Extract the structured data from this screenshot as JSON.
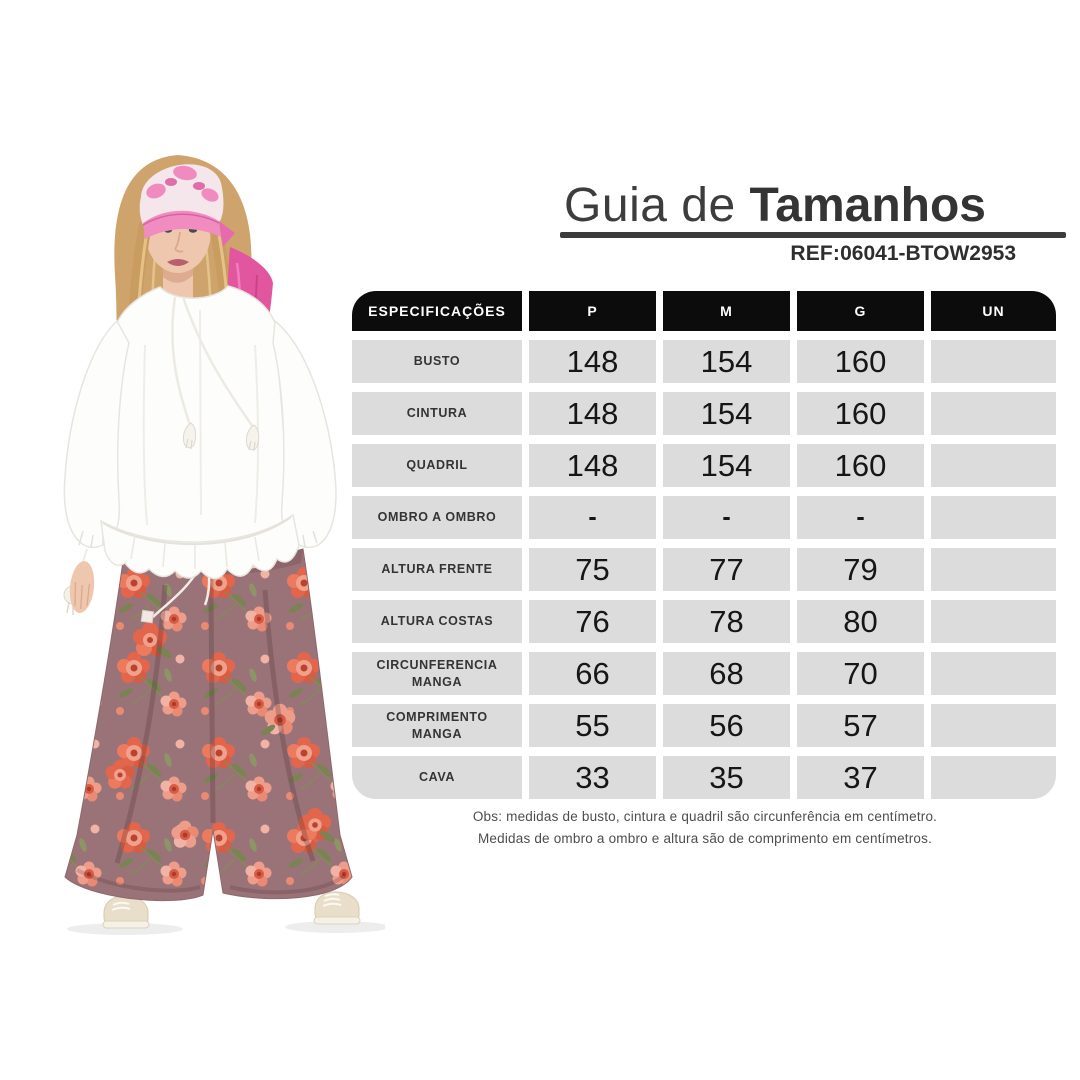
{
  "title": {
    "regular": "Guia de ",
    "bold": "Tamanhos"
  },
  "ref": {
    "label": "REF:",
    "code": "06041-BTOW2953"
  },
  "size_table": {
    "headers": [
      "ESPECIFICAÇÕES",
      "P",
      "M",
      "G",
      "UN"
    ],
    "rows": [
      {
        "label": "BUSTO",
        "values": [
          "148",
          "154",
          "160",
          ""
        ]
      },
      {
        "label": "CINTURA",
        "values": [
          "148",
          "154",
          "160",
          ""
        ]
      },
      {
        "label": "QUADRIL",
        "values": [
          "148",
          "154",
          "160",
          ""
        ]
      },
      {
        "label": "OMBRO A OMBRO",
        "values": [
          "-",
          "-",
          "-",
          ""
        ]
      },
      {
        "label": "ALTURA FRENTE",
        "values": [
          "75",
          "77",
          "79",
          ""
        ]
      },
      {
        "label": "ALTURA COSTAS",
        "values": [
          "76",
          "78",
          "80",
          ""
        ]
      },
      {
        "label": "CIRCUNFERENCIA MANGA",
        "values": [
          "66",
          "68",
          "70",
          ""
        ]
      },
      {
        "label": "COMPRIMENTO MANGA",
        "values": [
          "55",
          "56",
          "57",
          ""
        ]
      },
      {
        "label": "CAVA",
        "values": [
          "33",
          "35",
          "37",
          ""
        ]
      }
    ]
  },
  "notes": [
    "Obs: medidas de busto, cintura e quadril são circunferência em centímetro.",
    "Medidas de ombro a ombro e altura são de comprimento em centímetros."
  ],
  "photo": {
    "description": "Modelo com lenço rosa na cabeça, blusa branca de mangas amplas e calça pantalona floral"
  },
  "colors": {
    "header_bg": "#0c0c0c",
    "cell_bg": "#dcdcdc",
    "title_text": "#3d3d3d",
    "scarf_pink": "#e2569f",
    "pants_base": "#9c757a",
    "flower_coral": "#e2654c",
    "blouse_white": "#fdfdfb"
  }
}
